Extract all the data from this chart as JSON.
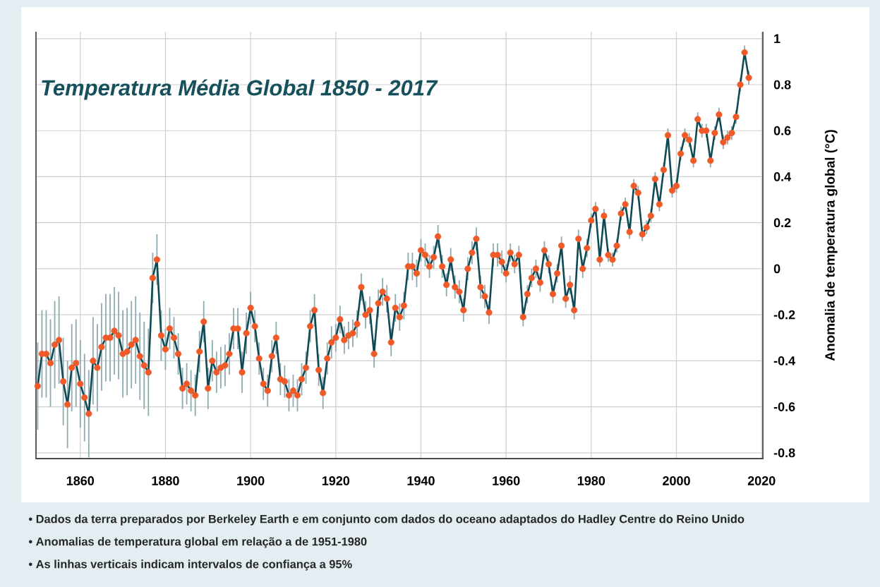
{
  "chart_data": {
    "type": "line",
    "title": "Temperatura Média Global 1850 - 2017",
    "ylabel": "Anomalia de temperatura global (°C)",
    "annotations": [
      "• Dados da terra preparados por Berkeley Earth e em conjunto com dados do oceano adaptados do Hadley Centre do Reino Unido",
      "• Anomalias de temperatura global em relação a de 1951-1980",
      "• As linhas verticais indicam intervalos de confiança a 95%"
    ],
    "xlim": [
      1849.6,
      2020.3
    ],
    "xticks": [
      1860,
      1880,
      1900,
      1920,
      1940,
      1960,
      1980,
      2000,
      2020
    ],
    "ylim": [
      -0.825,
      1.03
    ],
    "yticks": [
      -0.8,
      -0.6,
      -0.4,
      -0.2,
      0,
      0.2,
      0.4,
      0.6,
      0.8,
      1
    ],
    "grid": true,
    "marker": "circle",
    "line_style": "solid",
    "series": [
      {
        "color": "#f05a28",
        "x": [
          1850,
          1851,
          1852,
          1853,
          1854,
          1855,
          1856,
          1857,
          1858,
          1859,
          1860,
          1861,
          1862,
          1863,
          1864,
          1865,
          1866,
          1867,
          1868,
          1869,
          1870,
          1871,
          1872,
          1873,
          1874,
          1875,
          1876,
          1877,
          1878,
          1879,
          1880,
          1881,
          1882,
          1883,
          1884,
          1885,
          1886,
          1887,
          1888,
          1889,
          1890,
          1891,
          1892,
          1893,
          1894,
          1895,
          1896,
          1897,
          1898,
          1899,
          1900,
          1901,
          1902,
          1903,
          1904,
          1905,
          1906,
          1907,
          1908,
          1909,
          1910,
          1911,
          1912,
          1913,
          1914,
          1915,
          1916,
          1917,
          1918,
          1919,
          1920,
          1921,
          1922,
          1923,
          1924,
          1925,
          1926,
          1927,
          1928,
          1929,
          1930,
          1931,
          1932,
          1933,
          1934,
          1935,
          1936,
          1937,
          1938,
          1939,
          1940,
          1941,
          1942,
          1943,
          1944,
          1945,
          1946,
          1947,
          1948,
          1949,
          1950,
          1951,
          1952,
          1953,
          1954,
          1955,
          1956,
          1957,
          1958,
          1959,
          1960,
          1961,
          1962,
          1963,
          1964,
          1965,
          1966,
          1967,
          1968,
          1969,
          1970,
          1971,
          1972,
          1973,
          1974,
          1975,
          1976,
          1977,
          1978,
          1979,
          1980,
          1981,
          1982,
          1983,
          1984,
          1985,
          1986,
          1987,
          1988,
          1989,
          1990,
          1991,
          1992,
          1993,
          1994,
          1995,
          1996,
          1997,
          1998,
          1999,
          2000,
          2001,
          2002,
          2003,
          2004,
          2005,
          2006,
          2007,
          2008,
          2009,
          2010,
          2011,
          2012,
          2013,
          2014,
          2015,
          2016,
          2017
        ],
        "values": [
          -0.51,
          -0.37,
          -0.37,
          -0.41,
          -0.33,
          -0.31,
          -0.49,
          -0.59,
          -0.43,
          -0.41,
          -0.5,
          -0.56,
          -0.63,
          -0.4,
          -0.43,
          -0.34,
          -0.3,
          -0.3,
          -0.27,
          -0.29,
          -0.37,
          -0.36,
          -0.33,
          -0.31,
          -0.38,
          -0.42,
          -0.45,
          -0.04,
          0.04,
          -0.29,
          -0.35,
          -0.26,
          -0.3,
          -0.37,
          -0.52,
          -0.5,
          -0.53,
          -0.55,
          -0.36,
          -0.23,
          -0.52,
          -0.4,
          -0.45,
          -0.43,
          -0.42,
          -0.37,
          -0.26,
          -0.26,
          -0.45,
          -0.28,
          -0.17,
          -0.25,
          -0.39,
          -0.5,
          -0.53,
          -0.38,
          -0.3,
          -0.48,
          -0.49,
          -0.55,
          -0.53,
          -0.55,
          -0.48,
          -0.43,
          -0.25,
          -0.18,
          -0.44,
          -0.54,
          -0.39,
          -0.32,
          -0.3,
          -0.22,
          -0.31,
          -0.29,
          -0.28,
          -0.24,
          -0.08,
          -0.2,
          -0.18,
          -0.37,
          -0.15,
          -0.1,
          -0.13,
          -0.32,
          -0.17,
          -0.21,
          -0.16,
          0.01,
          0.01,
          -0.02,
          0.08,
          0.06,
          0.01,
          0.05,
          0.14,
          0.01,
          -0.07,
          0.04,
          -0.08,
          -0.1,
          -0.18,
          0,
          0.07,
          0.13,
          -0.08,
          -0.12,
          -0.19,
          0.06,
          0.06,
          0.03,
          -0.02,
          0.07,
          0.02,
          0.06,
          -0.21,
          -0.11,
          -0.04,
          0,
          -0.06,
          0.08,
          0.02,
          -0.11,
          -0.02,
          0.1,
          -0.13,
          -0.07,
          -0.18,
          0.13,
          0,
          0.09,
          0.21,
          0.26,
          0.04,
          0.23,
          0.06,
          0.04,
          0.1,
          0.24,
          0.28,
          0.16,
          0.36,
          0.33,
          0.15,
          0.18,
          0.23,
          0.39,
          0.28,
          0.43,
          0.58,
          0.34,
          0.36,
          0.5,
          0.58,
          0.56,
          0.47,
          0.65,
          0.6,
          0.6,
          0.47,
          0.59,
          0.67,
          0.55,
          0.57,
          0.59,
          0.66,
          0.8,
          0.94,
          0.83
        ],
        "errors": [
          0.19,
          0.19,
          0.19,
          0.19,
          0.19,
          0.19,
          0.19,
          0.19,
          0.19,
          0.19,
          0.19,
          0.19,
          0.19,
          0.19,
          0.19,
          0.19,
          0.19,
          0.19,
          0.19,
          0.19,
          0.19,
          0.19,
          0.19,
          0.19,
          0.19,
          0.19,
          0.19,
          0.11,
          0.11,
          0.11,
          0.09,
          0.09,
          0.09,
          0.09,
          0.09,
          0.09,
          0.09,
          0.09,
          0.09,
          0.09,
          0.09,
          0.09,
          0.09,
          0.09,
          0.09,
          0.09,
          0.09,
          0.09,
          0.09,
          0.09,
          0.07,
          0.07,
          0.07,
          0.07,
          0.07,
          0.07,
          0.07,
          0.07,
          0.07,
          0.07,
          0.07,
          0.07,
          0.07,
          0.07,
          0.07,
          0.07,
          0.07,
          0.07,
          0.07,
          0.07,
          0.06,
          0.06,
          0.06,
          0.06,
          0.06,
          0.06,
          0.06,
          0.06,
          0.06,
          0.06,
          0.06,
          0.06,
          0.06,
          0.06,
          0.06,
          0.06,
          0.06,
          0.06,
          0.06,
          0.06,
          0.05,
          0.05,
          0.05,
          0.05,
          0.05,
          0.05,
          0.05,
          0.05,
          0.05,
          0.05,
          0.05,
          0.05,
          0.05,
          0.05,
          0.05,
          0.05,
          0.05,
          0.05,
          0.05,
          0.05,
          0.04,
          0.04,
          0.04,
          0.04,
          0.04,
          0.04,
          0.04,
          0.04,
          0.04,
          0.04,
          0.04,
          0.04,
          0.04,
          0.04,
          0.04,
          0.04,
          0.04,
          0.04,
          0.04,
          0.04,
          0.03,
          0.03,
          0.03,
          0.03,
          0.03,
          0.03,
          0.03,
          0.03,
          0.03,
          0.03,
          0.03,
          0.03,
          0.03,
          0.03,
          0.03,
          0.03,
          0.03,
          0.03,
          0.03,
          0.03,
          0.03,
          0.03,
          0.03,
          0.03,
          0.03,
          0.03,
          0.03,
          0.03,
          0.03,
          0.03,
          0.03,
          0.03,
          0.03,
          0.03,
          0.03,
          0.03,
          0.03,
          0.03
        ]
      }
    ]
  }
}
